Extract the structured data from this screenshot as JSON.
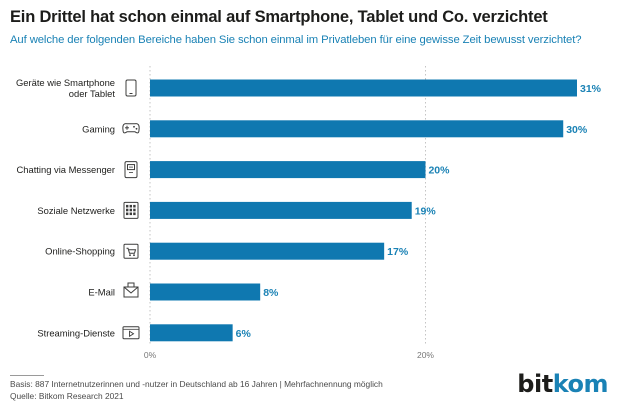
{
  "header": {
    "title": "Ein Drittel hat schon einmal auf Smartphone, Tablet und Co. verzichtet",
    "subtitle": "Auf welche der folgenden Bereiche haben Sie schon einmal im Privatleben für eine gewisse Zeit bewusst verzichtet?"
  },
  "chart_data": {
    "type": "bar",
    "orientation": "horizontal",
    "categories": [
      [
        "Geräte wie Smartphone",
        "oder Tablet"
      ],
      [
        "Gaming"
      ],
      [
        "Chatting via Messenger"
      ],
      [
        "Soziale Netzwerke"
      ],
      [
        "Online-Shopping"
      ],
      [
        "E-Mail"
      ],
      [
        "Streaming-Dienste"
      ]
    ],
    "icons": [
      "phone-icon",
      "gamepad-icon",
      "messenger-icon",
      "social-grid-icon",
      "cart-icon",
      "mail-icon",
      "video-player-icon"
    ],
    "values": [
      31,
      30,
      20,
      19,
      17,
      8,
      6
    ],
    "value_labels": [
      "31%",
      "30%",
      "20%",
      "19%",
      "17%",
      "8%",
      "6%"
    ],
    "xlim": [
      0,
      31
    ],
    "xticks": [
      0,
      20
    ],
    "xtick_labels": [
      "0%",
      "20%"
    ],
    "grid": "vertical-dashed",
    "bar_color": "#0f78b0"
  },
  "footer": {
    "basis": "Basis: 887 Internetnutzerinnen und -nutzer in Deutschland ab 16 Jahren | Mehrfachnennung möglich",
    "source": "Quelle: Bitkom Research 2021"
  },
  "logo": {
    "part1": "bit",
    "part2": "kom"
  }
}
